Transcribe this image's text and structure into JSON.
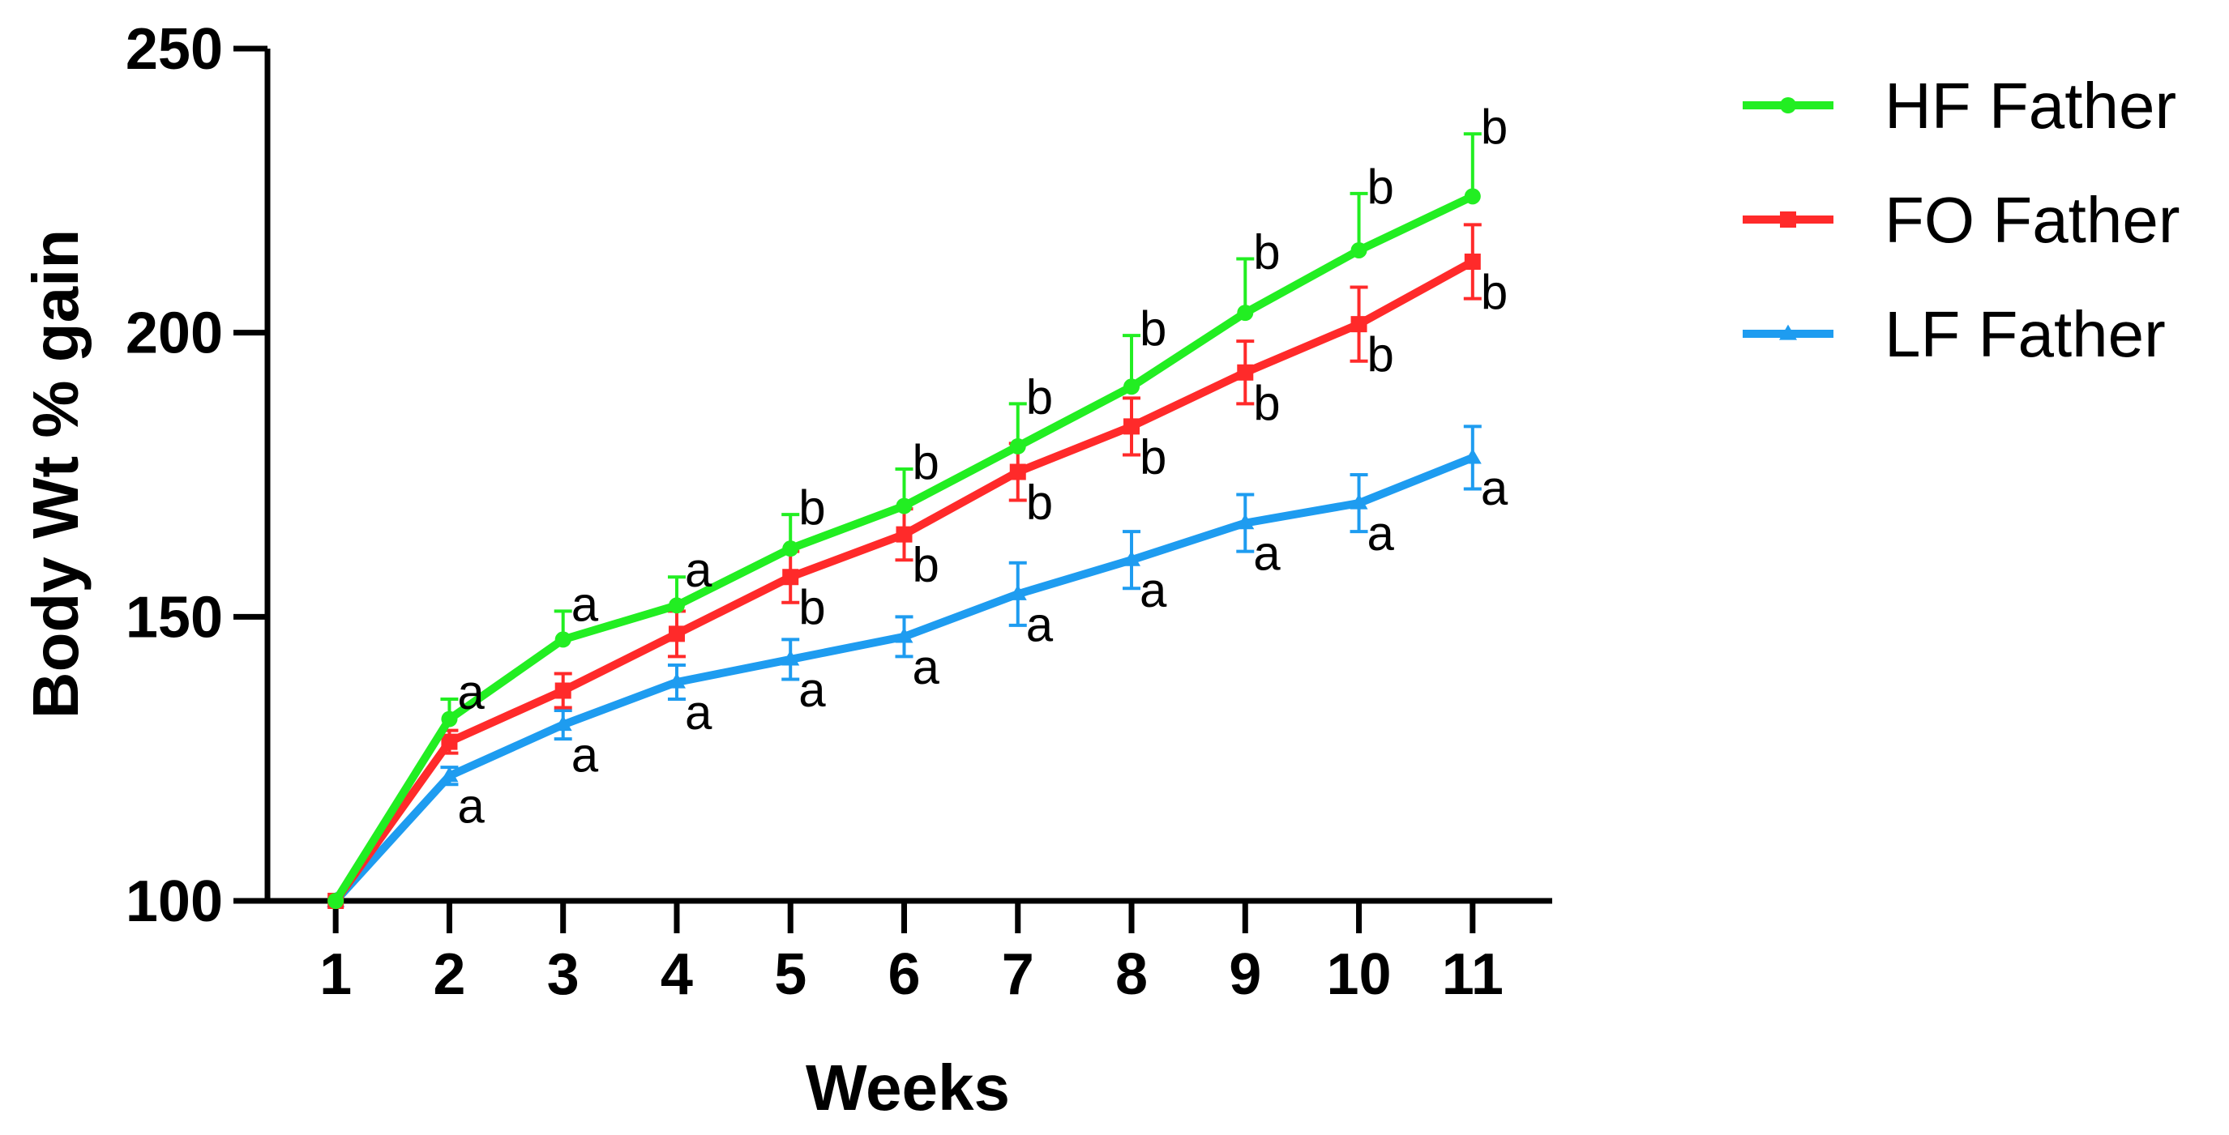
{
  "chart_data": {
    "type": "line",
    "title": "",
    "xlabel": "Weeks",
    "ylabel": "Body  Wt % gain",
    "x": [
      1,
      2,
      3,
      4,
      5,
      6,
      7,
      8,
      9,
      10,
      11
    ],
    "xlim": [
      0.4,
      11.7
    ],
    "ylim": [
      100,
      250
    ],
    "yticks": [
      100,
      150,
      200,
      250
    ],
    "grid": false,
    "legend_position": "top-right",
    "series": [
      {
        "name": "HF Father",
        "color": "#22ee22",
        "marker": "circle",
        "error_style": "up",
        "values": [
          100,
          132,
          146,
          152,
          162,
          169.5,
          180,
          190.5,
          203.5,
          214.5,
          224
        ],
        "errors": [
          0,
          3.5,
          5,
          5,
          6,
          6.5,
          7.5,
          9,
          9.5,
          10,
          11
        ],
        "annotations": [
          "",
          "a",
          "a",
          "a",
          "b",
          "b",
          "b",
          "b",
          "b",
          "b",
          "b"
        ]
      },
      {
        "name": "FO Father",
        "color": "#ff2a2a",
        "marker": "square",
        "error_style": "both",
        "values": [
          100,
          128,
          137,
          147,
          157,
          164.5,
          175.5,
          183.5,
          193,
          201.5,
          212.5
        ],
        "errors": [
          0,
          2,
          3,
          4,
          4.5,
          4.5,
          5,
          5,
          5.5,
          6.5,
          6.5
        ],
        "annotations": [
          "",
          "",
          "",
          "",
          "b",
          "b",
          "b",
          "b",
          "b",
          "b",
          "b"
        ]
      },
      {
        "name": "LF Father",
        "color": "#1e9cf0",
        "marker": "triangle",
        "error_style": "both",
        "values": [
          100,
          122,
          131,
          138.5,
          142.5,
          146.5,
          154,
          160,
          166.5,
          170,
          178
        ],
        "errors": [
          0,
          1.5,
          2.5,
          3,
          3.5,
          3.5,
          5.5,
          5,
          5,
          5,
          5.5
        ],
        "annotations": [
          "",
          "a",
          "a",
          "a",
          "a",
          "a",
          "a",
          "a",
          "a",
          "a",
          "a"
        ]
      }
    ]
  }
}
